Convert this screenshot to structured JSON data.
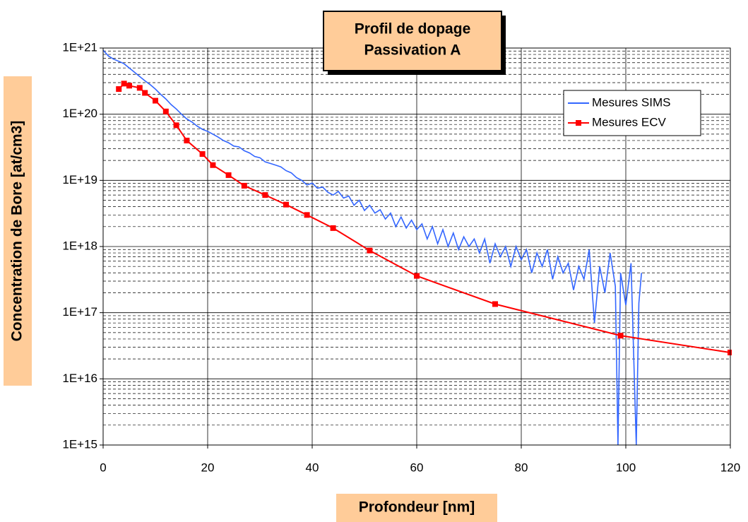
{
  "chart_data": {
    "type": "line",
    "title": "Profil de dopage",
    "subtitle": "Passivation A",
    "x_label": "Profondeur [nm]",
    "y_label": "Concentration de Bore [at/cm3]",
    "log_y": true,
    "grid": true,
    "minor_grid": true,
    "legend": "upper right",
    "xlim": [
      0,
      120
    ],
    "xticks": [
      0,
      20,
      40,
      60,
      80,
      100,
      120
    ],
    "ylim": [
      1000000000000000.0,
      1e+21
    ],
    "yticks": [
      {
        "value": 1000000000000000.0,
        "label": "1E+15"
      },
      {
        "value": 1e+16,
        "label": "1E+16"
      },
      {
        "value": 1e+17,
        "label": "1E+17"
      },
      {
        "value": 1e+18,
        "label": "1E+18"
      },
      {
        "value": 1e+19,
        "label": "1E+19"
      },
      {
        "value": 1e+20,
        "label": "1E+20"
      },
      {
        "value": 1e+21,
        "label": "1E+21"
      }
    ],
    "series": [
      {
        "name": "Mesures SIMS",
        "color": "#3366ff",
        "markers": false,
        "x": [
          0,
          1,
          2,
          3,
          4,
          5,
          6,
          7,
          8,
          9,
          10,
          11,
          12,
          13,
          14,
          15,
          16,
          17,
          18,
          19,
          20,
          21,
          22,
          23,
          24,
          25,
          26,
          27,
          28,
          29,
          30,
          31,
          32,
          33,
          34,
          35,
          36,
          37,
          38,
          39,
          40,
          41,
          42,
          43,
          44,
          45,
          46,
          47,
          48,
          49,
          50,
          51,
          52,
          53,
          54,
          55,
          56,
          57,
          58,
          59,
          60,
          61,
          62,
          63,
          64,
          65,
          66,
          67,
          68,
          69,
          70,
          71,
          72,
          73,
          74,
          75,
          76,
          77,
          78,
          79,
          80,
          81,
          82,
          83,
          84,
          85,
          86,
          87,
          88,
          89,
          90,
          91,
          92,
          93,
          94,
          95,
          96,
          97,
          98,
          98.5,
          99,
          100,
          101,
          102,
          102.5,
          103
        ],
        "values": [
          9.3e+20,
          7.6e+20,
          6.8e+20,
          6.3e+20,
          5.8e+20,
          5e+20,
          4.3e+20,
          3.7e+20,
          3.2e+20,
          2.8e+20,
          2.4e+20,
          2e+20,
          1.7e+20,
          1.4e+20,
          1.2e+20,
          1e+20,
          8.5e+19,
          7.6e+19,
          6.6e+19,
          5.9e+19,
          5.5e+19,
          5e+19,
          4.5e+19,
          4e+19,
          3.7e+19,
          3.3e+19,
          3.2e+19,
          2.8e+19,
          2.6e+19,
          2.3e+19,
          2.2e+19,
          1.9e+19,
          1.8e+19,
          1.7e+19,
          1.6e+19,
          1.4e+19,
          1.3e+19,
          1.1e+19,
          1e+19,
          8.5e+18,
          9.1e+18,
          7.6e+18,
          7.9e+18,
          6.6e+18,
          6e+18,
          6.8e+18,
          5.4e+18,
          5.8e+18,
          4.2e+18,
          5e+18,
          3.5e+18,
          4.2e+18,
          3.2e+18,
          3.6e+18,
          2.6e+18,
          3.2e+18,
          2e+18,
          2.8e+18,
          1.9e+18,
          2.5e+18,
          1.8e+18,
          2.2e+18,
          1.3e+18,
          2e+18,
          1.1e+18,
          1.8e+18,
          1e+18,
          1.6e+18,
          9e+17,
          1.4e+18,
          1e+18,
          1.3e+18,
          8e+17,
          1.3e+18,
          5.6e+17,
          1.1e+18,
          7e+17,
          1e+18,
          5e+17,
          1e+18,
          6.3e+17,
          9e+17,
          4e+17,
          8e+17,
          5e+17,
          9e+17,
          3.2e+17,
          7e+17,
          4e+17,
          5.6e+17,
          2.2e+17,
          5e+17,
          3.2e+17,
          9e+17,
          7e+16,
          5e+17,
          2e+17,
          8e+17,
          2.5e+17,
          1000000000000000.0,
          4e+17,
          1.3e+17,
          5.6e+17,
          1000000000000000.0,
          1.4e+17,
          4e+17
        ]
      },
      {
        "name": "Mesures ECV",
        "color": "#ff0000",
        "markers": true,
        "x": [
          3,
          4,
          5,
          7,
          8,
          10,
          12,
          14,
          16,
          19,
          21,
          24,
          27,
          31,
          35,
          39,
          44,
          51,
          60,
          75,
          99,
          120
        ],
        "values": [
          2.4e+20,
          2.9e+20,
          2.7e+20,
          2.5e+20,
          2.1e+20,
          1.6e+20,
          1.1e+20,
          6.8e+19,
          4e+19,
          2.5e+19,
          1.7e+19,
          1.2e+19,
          8.3e+18,
          6e+18,
          4.3e+18,
          3e+18,
          1.9e+18,
          8.7e+17,
          3.6e+17,
          1.35e+17,
          4.5e+16,
          2.5e+16
        ]
      }
    ]
  }
}
